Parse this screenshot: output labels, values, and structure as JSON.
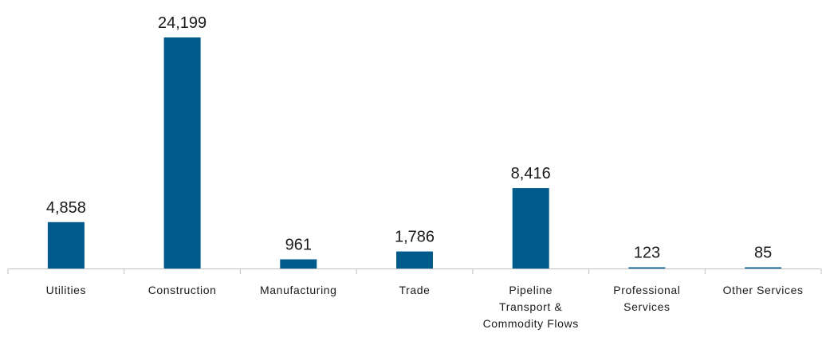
{
  "chart_data": {
    "type": "bar",
    "categories": [
      [
        "Utilities"
      ],
      [
        "Construction"
      ],
      [
        "Manufacturing"
      ],
      [
        "Trade"
      ],
      [
        "Pipeline",
        "Transport &",
        "Commodity Flows"
      ],
      [
        "Professional",
        "Services"
      ],
      [
        "Other Services"
      ]
    ],
    "values": [
      4858,
      24199,
      961,
      1786,
      8416,
      123,
      85
    ],
    "value_labels": [
      "4,858",
      "24,199",
      "961",
      "1,786",
      "8,416",
      "123",
      "85"
    ],
    "title": "",
    "xlabel": "",
    "ylabel": "",
    "ylim": [
      0,
      24199
    ],
    "grid": false,
    "legend": "none",
    "bar_color": "#005a8c"
  }
}
